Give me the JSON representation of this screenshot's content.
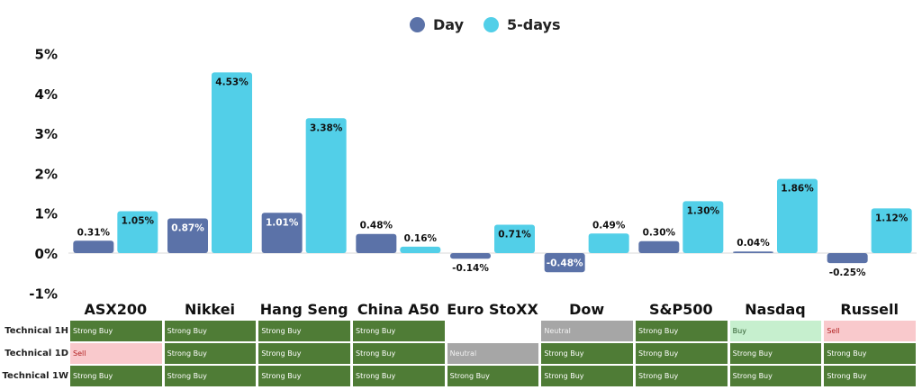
{
  "legend": {
    "day": "Day",
    "five_days": "5-days"
  },
  "colors": {
    "day": "#5b72a8",
    "five_days": "#52cfe8"
  },
  "chart_data": {
    "type": "bar",
    "categories": [
      "ASX200",
      "Nikkei",
      "Hang Seng",
      "China A50",
      "Euro StoXX",
      "Dow",
      "S&P500",
      "Nasdaq",
      "Russell"
    ],
    "series": [
      {
        "name": "Day",
        "values": [
          0.31,
          0.87,
          1.01,
          0.48,
          -0.14,
          -0.48,
          0.3,
          0.04,
          -0.25
        ],
        "labels": [
          "0.31%",
          "0.87%",
          "1.01%",
          "0.48%",
          "-0.14%",
          "-0.48%",
          "0.30%",
          "0.04%",
          "-0.25%"
        ]
      },
      {
        "name": "5-days",
        "values": [
          1.05,
          4.53,
          3.38,
          0.16,
          0.71,
          0.49,
          1.3,
          1.86,
          1.12
        ],
        "labels": [
          "1.05%",
          "4.53%",
          "3.38%",
          "0.16%",
          "0.71%",
          "0.49%",
          "1.30%",
          "1.86%",
          "1.12%"
        ]
      }
    ],
    "ylim": [
      -1,
      5
    ],
    "yticks": [
      -1,
      0,
      1,
      2,
      3,
      4,
      5
    ],
    "ytick_labels": [
      "-1%",
      "0%",
      "1%",
      "2%",
      "3%",
      "4%",
      "5%"
    ],
    "legend_position": "top-center",
    "grid": false
  },
  "technicals": {
    "rows": [
      {
        "label": "Technical 1H",
        "values": [
          "Strong Buy",
          "Strong Buy",
          "Strong Buy",
          "Strong Buy",
          "",
          "Neutral",
          "Strong Buy",
          "Buy",
          "Sell"
        ]
      },
      {
        "label": "Technical 1D",
        "values": [
          "Sell",
          "Strong Buy",
          "Strong Buy",
          "Strong Buy",
          "Neutral",
          "Strong Buy",
          "Strong Buy",
          "Strong Buy",
          "Strong Buy"
        ]
      },
      {
        "label": "Technical 1W",
        "values": [
          "Strong Buy",
          "Strong Buy",
          "Strong Buy",
          "Strong Buy",
          "Strong Buy",
          "Strong Buy",
          "Strong Buy",
          "Strong Buy",
          "Strong Buy"
        ]
      }
    ]
  }
}
